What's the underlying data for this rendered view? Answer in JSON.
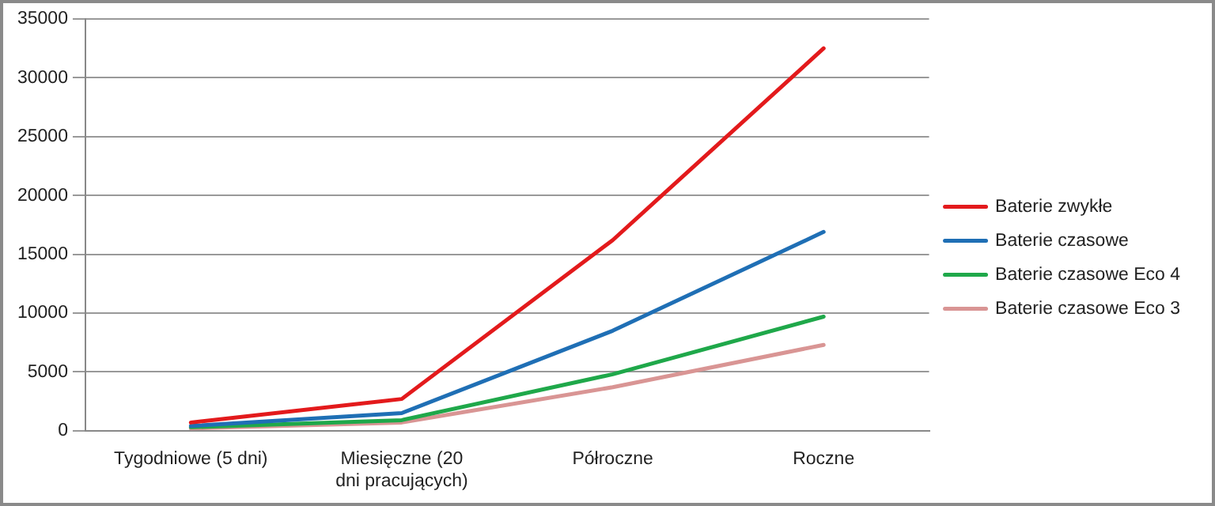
{
  "chart_data": {
    "type": "line",
    "categories": [
      "Tygodniowe (5 dni)",
      "Miesięczne (20 dni pracujących)",
      "Półroczne",
      "Roczne"
    ],
    "series": [
      {
        "name": "Baterie zwykłe",
        "color": "#e31a1c",
        "values": [
          700,
          2700,
          16200,
          32500
        ]
      },
      {
        "name": "Baterie czasowe",
        "color": "#1f6fb5",
        "values": [
          400,
          1500,
          8500,
          16900
        ]
      },
      {
        "name": "Baterie czasowe Eco 4",
        "color": "#1fa84a",
        "values": [
          300,
          900,
          4800,
          9700
        ]
      },
      {
        "name": "Baterie czasowe Eco 3",
        "color": "#d99594",
        "values": [
          200,
          700,
          3700,
          7300
        ]
      }
    ],
    "ylim": [
      0,
      35000
    ],
    "yticks": [
      0,
      5000,
      10000,
      15000,
      20000,
      25000,
      30000,
      35000
    ],
    "grid": "y",
    "legend": "right",
    "marker": "none",
    "line_style": "solid"
  }
}
